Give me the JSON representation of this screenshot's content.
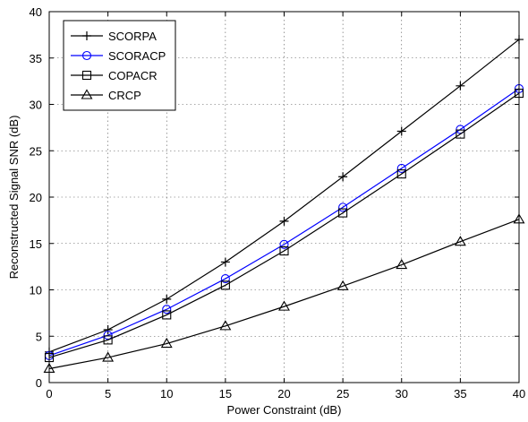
{
  "chart_data": {
    "type": "line",
    "title": "",
    "xlabel": "Power Constraint (dB)",
    "ylabel": "Reconstructed Signal SNR (dB)",
    "xlim": [
      0,
      40
    ],
    "ylim": [
      0,
      40
    ],
    "xticks": [
      0,
      5,
      10,
      15,
      20,
      25,
      30,
      35,
      40
    ],
    "yticks": [
      0,
      5,
      10,
      15,
      20,
      25,
      30,
      35,
      40
    ],
    "grid": true,
    "legend_position": "top-left",
    "x": [
      0,
      5,
      10,
      15,
      20,
      25,
      30,
      35,
      40
    ],
    "series": [
      {
        "name": "SCORPA",
        "values": [
          3.3,
          5.7,
          9.0,
          13.0,
          17.4,
          22.2,
          27.1,
          32.0,
          37.0
        ],
        "color": "#000000",
        "marker": "plus"
      },
      {
        "name": "SCORACP",
        "values": [
          2.9,
          5.1,
          7.9,
          11.2,
          14.9,
          18.9,
          23.1,
          27.3,
          31.7
        ],
        "color": "#0000ff",
        "marker": "circle"
      },
      {
        "name": "COPACR",
        "values": [
          2.7,
          4.6,
          7.3,
          10.5,
          14.2,
          18.3,
          22.5,
          26.8,
          31.2
        ],
        "color": "#000000",
        "marker": "square"
      },
      {
        "name": "CRCP",
        "values": [
          1.5,
          2.7,
          4.2,
          6.1,
          8.2,
          10.4,
          12.7,
          15.2,
          17.6
        ],
        "color": "#000000",
        "marker": "triangle"
      }
    ]
  }
}
